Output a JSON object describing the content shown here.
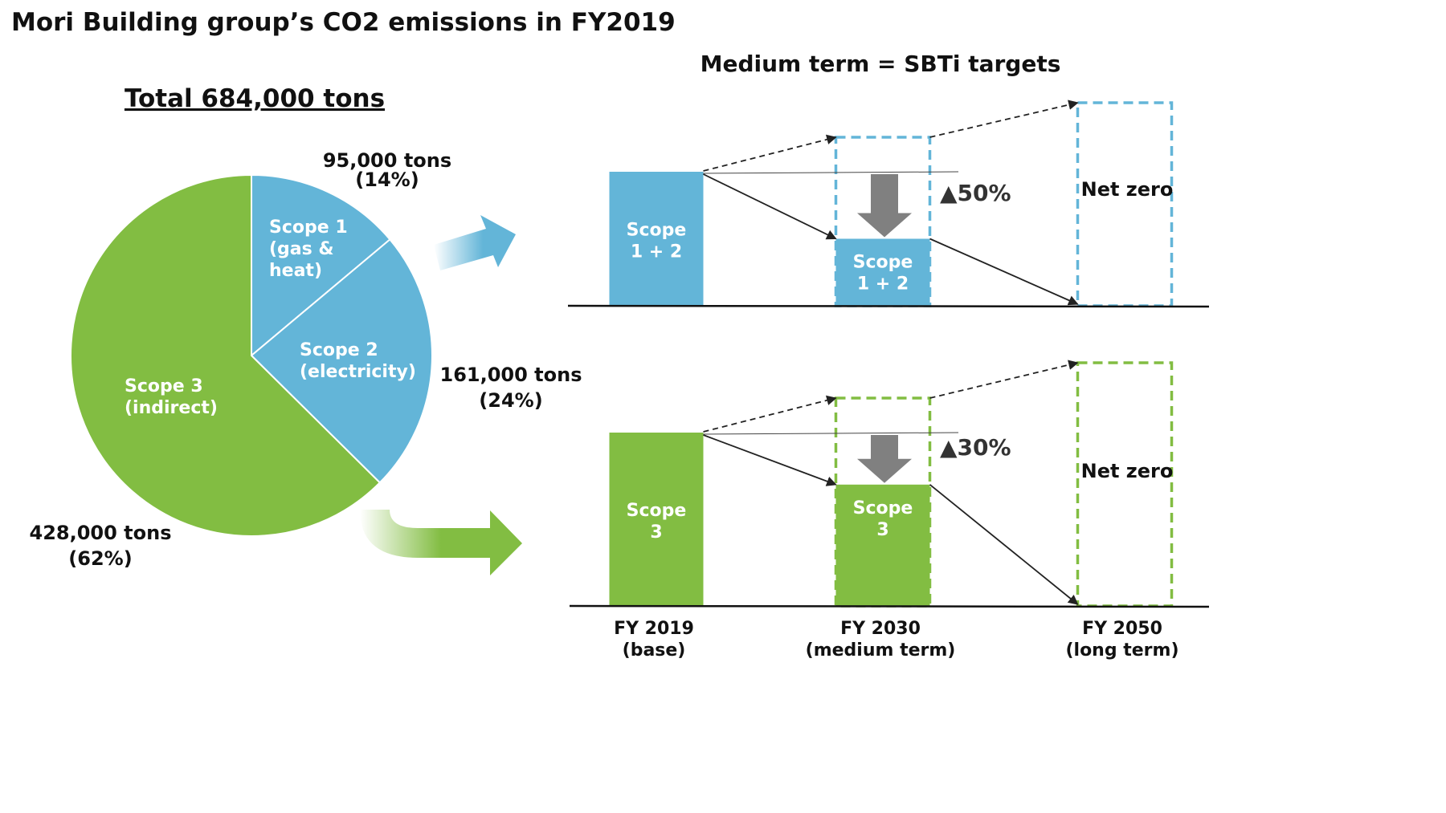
{
  "title": "Mori Building group’s CO2 emissions in FY2019",
  "subtitle_right": "Medium term = SBTi targets",
  "colors": {
    "blue": "#63b5d8",
    "green": "#82bd42",
    "arrow_gray": "#808080"
  },
  "chart_data": [
    {
      "type": "pie",
      "title": "Total 684,000 tons",
      "unit": "tons",
      "slices": [
        {
          "label_lines": [
            "Scope 1",
            "(gas &",
            "heat)"
          ],
          "value": 95000,
          "percent": 14,
          "value_label": "95,000 tons",
          "percent_label": "(14%)",
          "color": "#63b5d8"
        },
        {
          "label_lines": [
            "Scope 2",
            "(electricity)"
          ],
          "value": 161000,
          "percent": 24,
          "value_label": "161,000 tons",
          "percent_label": "(24%)",
          "color": "#63b5d8"
        },
        {
          "label_lines": [
            "Scope 3",
            "(indirect)"
          ],
          "value": 428000,
          "percent": 62,
          "value_label": "428,000 tons",
          "percent_label": "(62%)",
          "color": "#82bd42"
        }
      ]
    },
    {
      "type": "bar",
      "categories": [
        [
          "FY 2019",
          "(base)"
        ],
        [
          "FY 2030",
          "(medium term)"
        ],
        [
          "FY 2050",
          "(long term)"
        ]
      ],
      "series": [
        {
          "name": "Scope 1 + 2",
          "bar_label": [
            "Scope",
            "1 + 2"
          ],
          "values_relative": [
            100,
            50,
            0
          ],
          "reduction_label": "▲50%",
          "end_label": "Net zero",
          "color": "#63b5d8"
        },
        {
          "name": "Scope 3",
          "bar_label": [
            "Scope",
            "3"
          ],
          "values_relative": [
            100,
            70,
            0
          ],
          "reduction_label": "▲30%",
          "end_label": "Net zero",
          "color": "#82bd42"
        }
      ]
    }
  ]
}
